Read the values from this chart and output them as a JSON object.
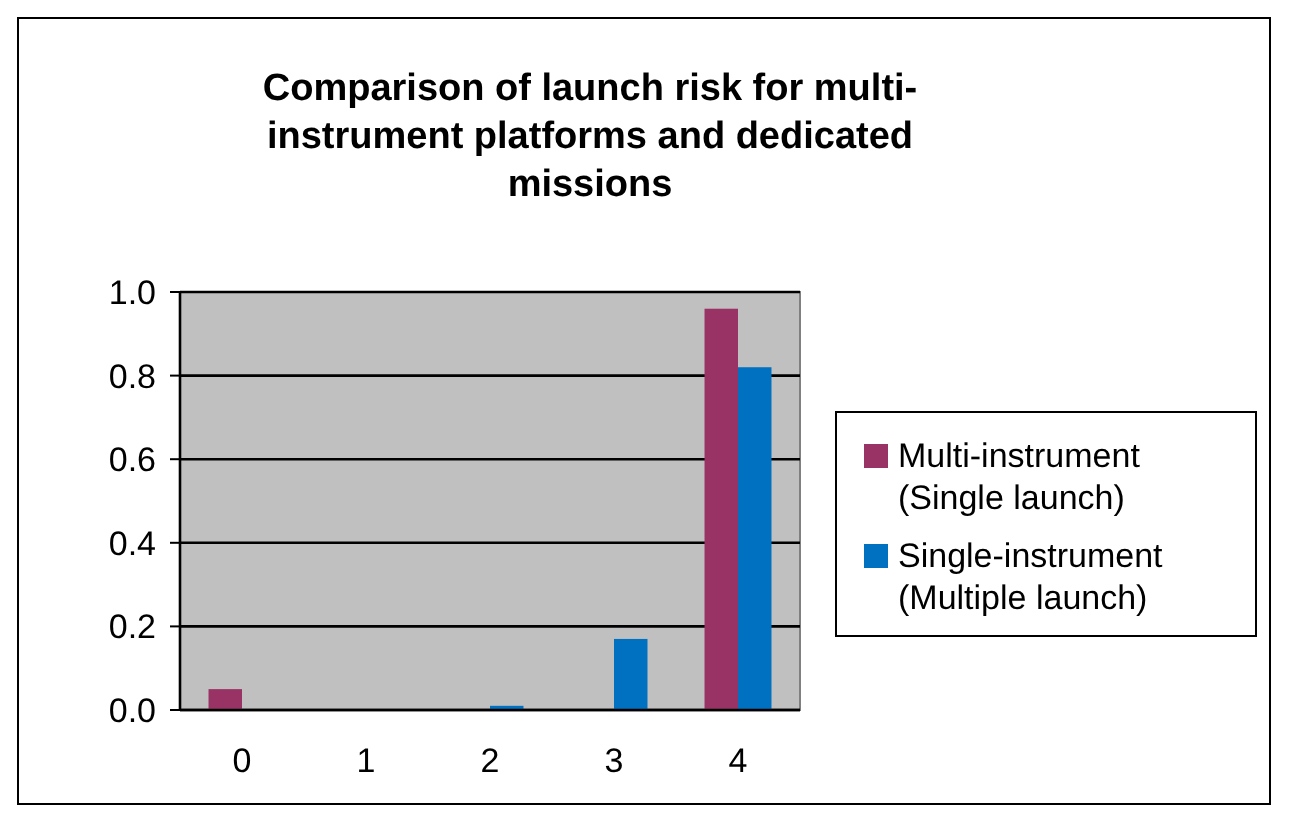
{
  "chart_data": {
    "type": "bar",
    "title": "Comparison of launch risk for multi-instrument platforms and dedicated missions",
    "categories": [
      "0",
      "1",
      "2",
      "3",
      "4"
    ],
    "series": [
      {
        "name": "Multi-instrument (Single launch)",
        "color": "#993366",
        "values": [
          0.05,
          0,
          0,
          0,
          0.96
        ]
      },
      {
        "name": "Single-instrument (Multiple launch)",
        "color": "#0070c0",
        "values": [
          0,
          0,
          0.01,
          0.17,
          0.82
        ]
      }
    ],
    "ylim": [
      0,
      1
    ],
    "yticks": [
      {
        "value": 0,
        "label": "0.0"
      },
      {
        "value": 0.2,
        "label": "0.2"
      },
      {
        "value": 0.4,
        "label": "0.4"
      },
      {
        "value": 0.6,
        "label": "0.6"
      },
      {
        "value": 0.8,
        "label": "0.8"
      },
      {
        "value": 1,
        "label": "1.0"
      }
    ],
    "grid": "y",
    "legend": "right"
  }
}
